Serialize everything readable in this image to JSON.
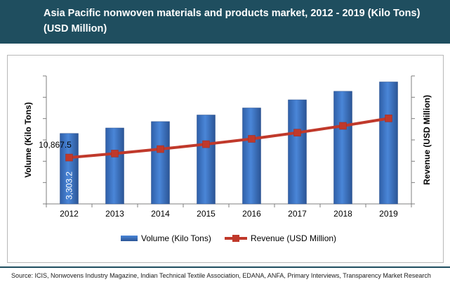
{
  "header": {
    "title": "Asia Pacific nonwoven materials and products market, 2012 - 2019 (Kilo Tons) (USD Million)"
  },
  "source": {
    "text": "Source: ICIS, Nonwovens Industry Magazine, Indian Technical Textile Association, EDANA, ANFA, Primary Interviews, Transparency Market Research"
  },
  "colors": {
    "header_bg": "#1f4e5f",
    "bar": "#3a6fc1",
    "line": "#c0392b"
  },
  "chart_data": {
    "type": "bar",
    "title": "Asia Pacific nonwoven materials and products market, 2012 - 2019 (Kilo Tons) (USD Million)",
    "categories": [
      "2012",
      "2013",
      "2014",
      "2015",
      "2016",
      "2017",
      "2018",
      "2019"
    ],
    "ylabel": "Volume (Kilo Tons)",
    "y2label": "Revenue (USD Million)",
    "ylim": [
      0,
      6000
    ],
    "y2lim": [
      0,
      30000
    ],
    "grid": false,
    "legend": "bottom",
    "series": [
      {
        "name": "Volume (Kilo Tons)",
        "type": "bar",
        "axis": "left",
        "values": [
          3303.2,
          3560,
          3860,
          4170,
          4500,
          4880,
          5280,
          5720
        ]
      },
      {
        "name": "Revenue (USD Million)",
        "type": "line",
        "axis": "right",
        "values": [
          10867.5,
          11800,
          12850,
          14000,
          15250,
          16700,
          18300,
          20050
        ]
      }
    ],
    "data_labels": {
      "bar_first": "3,303.2",
      "line_first": "10,867.5"
    }
  }
}
